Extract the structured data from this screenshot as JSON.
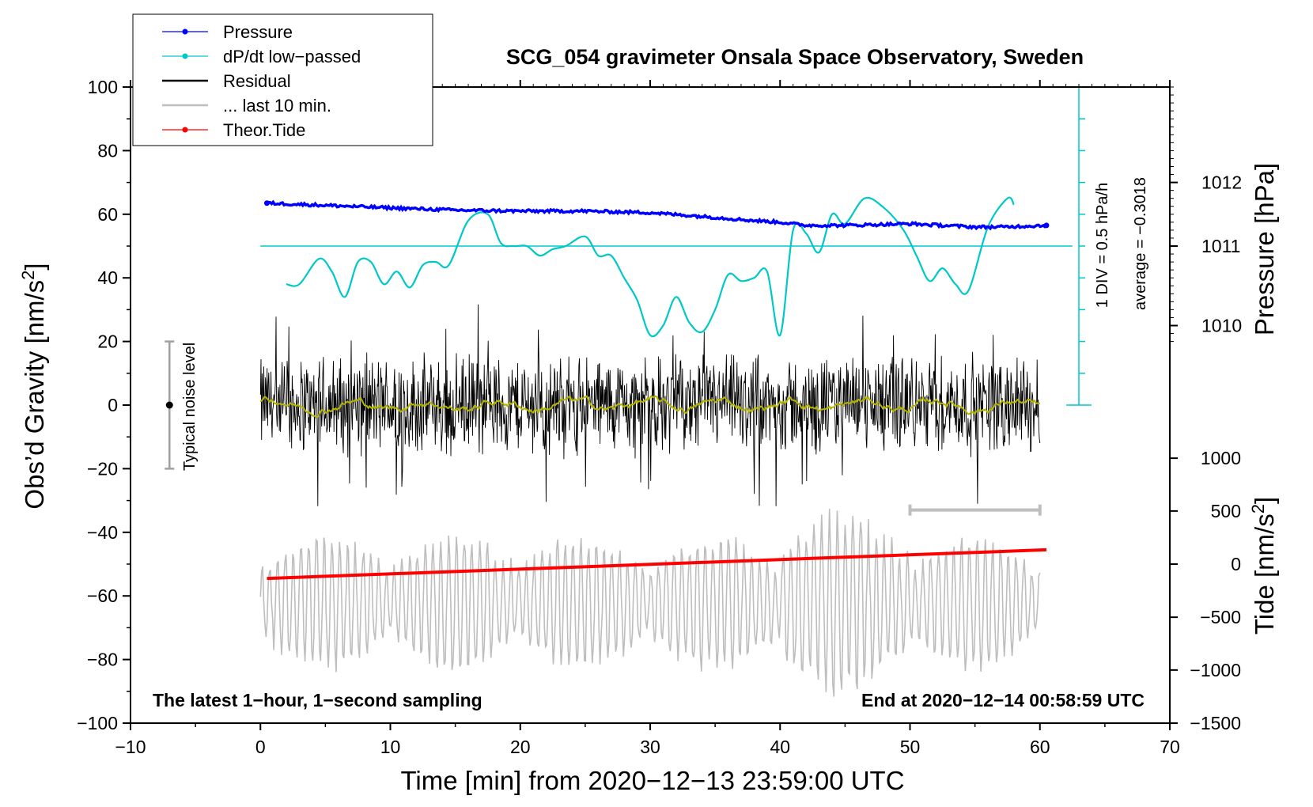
{
  "chart_data": {
    "type": "line",
    "title": "SCG_054 gravimeter Onsala Space Observatory, Sweden",
    "xlabel": "Time [min] from 2020−12−13 23:59:00 UTC",
    "ylabel_left": "Obs’d Gravity [nm/s",
    "ylabel_left_sup": "2",
    "ylabel_left_end": "]",
    "ylabel_right_pressure": "Pressure [hPa]",
    "ylabel_right_tide": "Tide [nm/s",
    "ylabel_right_tide_sup": "2",
    "ylabel_right_tide_end": "]",
    "xlim": [
      -10,
      70
    ],
    "ylim": [
      -100,
      100
    ],
    "x_ticks": [
      -10,
      0,
      10,
      20,
      30,
      40,
      50,
      60,
      70
    ],
    "x_tick_labels": [
      "−10",
      "0",
      "10",
      "20",
      "30",
      "40",
      "50",
      "60",
      "70"
    ],
    "y_ticks": [
      100,
      80,
      60,
      40,
      20,
      0,
      -20,
      -40,
      -60,
      -80,
      -100
    ],
    "y_tick_labels": [
      "100",
      "80",
      "60",
      "40",
      "20",
      "0",
      "−20",
      "−40",
      "−60",
      "−80",
      "−100"
    ],
    "pressure_axis": {
      "ticks": [
        1012,
        1011,
        1010
      ],
      "tick_labels": [
        "1012",
        "1011",
        "1010"
      ],
      "gravity_equivalent": [
        70,
        50,
        25
      ]
    },
    "tide_axis": {
      "ticks": [
        1000,
        500,
        0,
        -500,
        -1000,
        -1500
      ],
      "tick_labels": [
        "1000",
        "500",
        "0",
        "−500",
        "−1000",
        "−1500"
      ],
      "gravity_equivalent": [
        -16.7,
        -33.3,
        -50,
        -66.7,
        -83.3,
        -100
      ]
    },
    "legend": [
      {
        "label": "Pressure",
        "color": "#0000ff",
        "marker": true
      },
      {
        "label": "dP/dt low−passed",
        "color": "#00c8c8",
        "marker": true
      },
      {
        "label": "Residual",
        "color": "#000000",
        "marker": false
      },
      {
        "label": "... last 10 min.",
        "color": "#bebebe",
        "marker": false
      },
      {
        "label": "Theor.Tide",
        "color": "#ff0000",
        "marker": true
      }
    ],
    "series": [
      {
        "name": "Pressure",
        "color": "#0000ff",
        "x": [
          0.5,
          5,
          10,
          15,
          20,
          25,
          30,
          35,
          38,
          40,
          42,
          45,
          50,
          55,
          57,
          60.5
        ],
        "y": [
          63.5,
          62.8,
          62,
          61.3,
          61,
          61,
          60.5,
          59,
          58,
          57.5,
          56.5,
          56.5,
          57,
          56,
          56,
          56.5
        ]
      },
      {
        "name": "dP/dt low−passed",
        "color": "#00c8c8",
        "baseline": 50,
        "x": [
          2,
          3,
          4.5,
          5.5,
          6.5,
          7.5,
          8.5,
          9.5,
          10.5,
          11.5,
          12.5,
          13.5,
          14.5,
          16,
          17.5,
          18.5,
          19.5,
          20.5,
          21.5,
          22.5,
          23.5,
          25,
          26,
          27,
          28,
          29,
          30,
          31,
          32,
          33,
          34,
          35,
          36,
          37,
          38,
          39,
          40,
          41,
          42,
          43,
          44,
          45,
          46.5,
          48,
          49.5,
          50.5,
          51.5,
          52.5,
          53.5,
          54.5,
          56,
          57.5,
          58
        ],
        "y": [
          38,
          38,
          46,
          42,
          34,
          45,
          45,
          38,
          42,
          37,
          44,
          45,
          44,
          58,
          60,
          51,
          50,
          50,
          47,
          49,
          50,
          53,
          47,
          47,
          40,
          33,
          22,
          25,
          34,
          26,
          23,
          30,
          41,
          39,
          40,
          42,
          22,
          55,
          54,
          48,
          60,
          57,
          65,
          62,
          55,
          47,
          39,
          43,
          38,
          36,
          56,
          65,
          63
        ]
      },
      {
        "name": "Residual",
        "color": "#000000",
        "x_start": 0,
        "x_end": 60,
        "amplitude": 12,
        "min": -33,
        "max": 35
      },
      {
        "name": "Residual smoothed",
        "color": "#b4b400",
        "x_start": 0,
        "x_end": 60,
        "amplitude": 3
      },
      {
        "name": "... last 10 min.",
        "color": "#bebebe",
        "x_start": 0,
        "x_end": 60,
        "center": -62,
        "amplitude": 15
      },
      {
        "name": "Theor.Tide",
        "color": "#ff0000",
        "x": [
          0.5,
          60.5
        ],
        "y": [
          -54.5,
          -45.5
        ]
      }
    ],
    "noise_level": {
      "label": "Typical noise level",
      "x": -7,
      "center": 0,
      "low": -20,
      "high": 20
    },
    "dpdt_scale": {
      "label_div": "1 DIV = 0.5 hPa/h",
      "label_avg": "average = −0.3018",
      "x": 63,
      "top": 100,
      "bottom": 0,
      "divisions": 10
    },
    "last10_bar": {
      "x_start": 50,
      "x_end": 60,
      "y": -33
    },
    "note_left": "The latest 1−hour, 1−second sampling",
    "note_right": "End at 2020−12−14 00:58:59 UTC"
  }
}
